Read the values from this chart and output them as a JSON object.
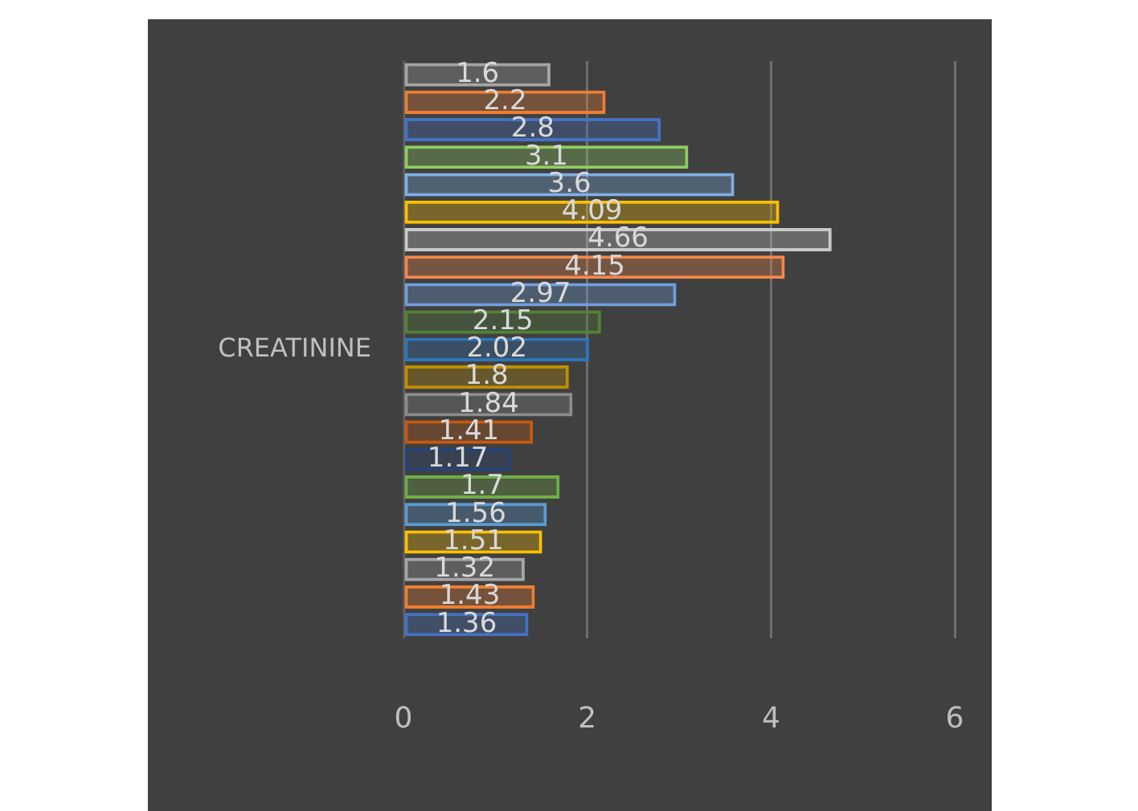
{
  "chart_data": {
    "type": "bar",
    "orientation": "horizontal",
    "ylabel": "CREATININE",
    "categories": [
      null,
      null,
      null,
      null,
      null,
      null,
      null,
      null,
      null,
      null,
      null,
      null,
      null,
      null,
      null,
      null,
      null,
      null,
      null,
      null,
      null
    ],
    "values": [
      1.6,
      2.2,
      2.8,
      3.1,
      3.6,
      4.09,
      4.66,
      4.15,
      2.97,
      2.15,
      2.02,
      1.8,
      1.84,
      1.41,
      1.17,
      1.7,
      1.56,
      1.51,
      1.32,
      1.43,
      1.36
    ],
    "colors": [
      "#a5a5a5",
      "#ed7d31",
      "#4472c4",
      "#8fce5f",
      "#7fb0e6",
      "#ffc000",
      "#c9c9c9",
      "#f4884a",
      "#6f9fde",
      "#548235",
      "#2e75b6",
      "#bf9000",
      "#8c8c8c",
      "#c55a11",
      "#264478",
      "#70ad47",
      "#5b9bd5",
      "#ffc000",
      "#a5a5a5",
      "#ed7d31",
      "#4472c4"
    ],
    "xlim": [
      0,
      6
    ],
    "xticks": [
      0,
      2,
      4,
      6
    ],
    "grid": "x",
    "legend": false,
    "data_labels": true
  }
}
